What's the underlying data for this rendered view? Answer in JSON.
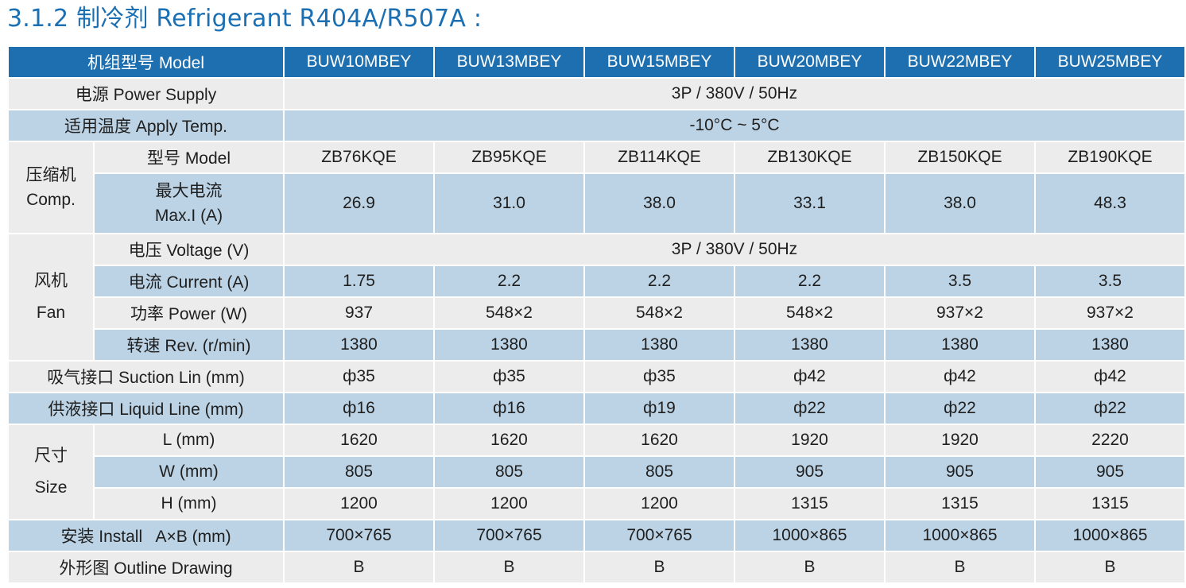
{
  "title": "3.1.2 制冷剂 Refrigerant  R404A/R507A :",
  "header": {
    "model_label": "机组型号 Model",
    "models": [
      "BUW10MBEY",
      "BUW13MBEY",
      "BUW15MBEY",
      "BUW20MBEY",
      "BUW22MBEY",
      "BUW25MBEY"
    ]
  },
  "power_supply": {
    "label": "电源 Power Supply",
    "value": "3P / 380V / 50Hz"
  },
  "apply_temp": {
    "label": "适用温度 Apply Temp.",
    "value": "-10°C ~ 5°C"
  },
  "compressor": {
    "group_label_cn": "压缩机",
    "group_label_en": "Comp.",
    "model": {
      "label": "型号 Model",
      "values": [
        "ZB76KQE",
        "ZB95KQE",
        "ZB114KQE",
        "ZB130KQE",
        "ZB150KQE",
        "ZB190KQE"
      ]
    },
    "max_current": {
      "label_cn": "最大电流",
      "label_en": "Max.I (A)",
      "values": [
        "26.9",
        "31.0",
        "38.0",
        "33.1",
        "38.0",
        "48.3"
      ]
    }
  },
  "fan": {
    "group_label_cn": "风机",
    "group_label_en": "Fan",
    "voltage": {
      "label": "电压 Voltage (V)",
      "value": "3P / 380V / 50Hz"
    },
    "current": {
      "label": "电流 Current (A)",
      "values": [
        "1.75",
        "2.2",
        "2.2",
        "2.2",
        "3.5",
        "3.5"
      ]
    },
    "power": {
      "label": "功率 Power (W)",
      "values": [
        "937",
        "548×2",
        "548×2",
        "548×2",
        "937×2",
        "937×2"
      ]
    },
    "speed": {
      "label": "转速 Rev. (r/min)",
      "values": [
        "1380",
        "1380",
        "1380",
        "1380",
        "1380",
        "1380"
      ]
    }
  },
  "suction": {
    "label": "吸气接口 Suction Lin (mm)",
    "values": [
      "ф35",
      "ф35",
      "ф35",
      "ф42",
      "ф42",
      "ф42"
    ]
  },
  "liquid": {
    "label": "供液接口 Liquid Line (mm)",
    "values": [
      "ф16",
      "ф16",
      "ф19",
      "ф22",
      "ф22",
      "ф22"
    ]
  },
  "size": {
    "group_label_cn": "尺寸",
    "group_label_en": "Size",
    "length": {
      "label": "L (mm)",
      "values": [
        "1620",
        "1620",
        "1620",
        "1920",
        "1920",
        "2220"
      ]
    },
    "width": {
      "label": "W (mm)",
      "values": [
        "805",
        "805",
        "805",
        "905",
        "905",
        "905"
      ]
    },
    "height": {
      "label": "H (mm)",
      "values": [
        "1200",
        "1200",
        "1200",
        "1315",
        "1315",
        "1315"
      ]
    }
  },
  "install": {
    "label": "安装 Install   A×B (mm)",
    "values": [
      "700×765",
      "700×765",
      "700×765",
      "1000×865",
      "1000×865",
      "1000×865"
    ]
  },
  "outline": {
    "label": "外形图 Outline Drawing",
    "values": [
      "B",
      "B",
      "B",
      "B",
      "B",
      "B"
    ]
  }
}
